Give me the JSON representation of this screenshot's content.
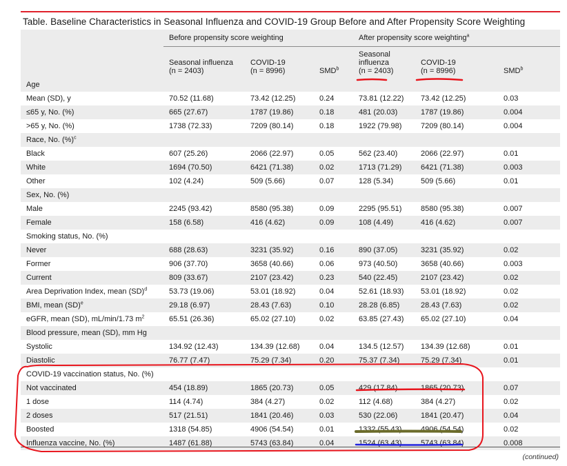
{
  "title": "Table. Baseline Characteristics in Seasonal Influenza and COVID-19 Group Before and After Propensity Score Weighting",
  "groups": {
    "before": "Before propensity score weighting",
    "after": "After propensity score weighting",
    "after_sup": "a"
  },
  "columns": {
    "before_flu": [
      "Seasonal influenza",
      "(n = 2403)"
    ],
    "before_covid": [
      "COVID-19",
      "(n = 8996)"
    ],
    "before_smd": "SMD",
    "after_flu": [
      "Seasonal",
      "influenza",
      "(n = 2403)"
    ],
    "after_covid": [
      "COVID-19",
      "(n = 8996)"
    ],
    "after_smd": "SMD",
    "smd_sup": "b"
  },
  "rows": [
    {
      "label": "Age",
      "type": "section",
      "cells": []
    },
    {
      "label": "Mean (SD), y",
      "type": "sub",
      "cells": [
        "70.52 (11.68)",
        "73.42 (12.25)",
        "0.24",
        "73.81 (12.22)",
        "73.42 (12.25)",
        "0.03"
      ]
    },
    {
      "label": "≤65 y, No. (%)",
      "type": "sub",
      "cells": [
        "665 (27.67)",
        "1787 (19.86)",
        "0.18",
        "481 (20.03)",
        "1787 (19.86)",
        "0.004"
      ]
    },
    {
      "label": ">65 y, No. (%)",
      "type": "sub",
      "cells": [
        "1738 (72.33)",
        "7209 (80.14)",
        "0.18",
        "1922 (79.98)",
        "7209 (80.14)",
        "0.004"
      ]
    },
    {
      "label": "Race, No. (%)",
      "sup": "c",
      "type": "section",
      "cells": []
    },
    {
      "label": "Black",
      "type": "sub",
      "cells": [
        "607 (25.26)",
        "2066 (22.97)",
        "0.05",
        "562 (23.40)",
        "2066 (22.97)",
        "0.01"
      ]
    },
    {
      "label": "White",
      "type": "sub",
      "cells": [
        "1694 (70.50)",
        "6421 (71.38)",
        "0.02",
        "1713 (71.29)",
        "6421 (71.38)",
        "0.003"
      ]
    },
    {
      "label": "Other",
      "type": "sub",
      "cells": [
        "102 (4.24)",
        "509 (5.66)",
        "0.07",
        "128 (5.34)",
        "509 (5.66)",
        "0.01"
      ]
    },
    {
      "label": "Sex, No. (%)",
      "type": "section",
      "cells": []
    },
    {
      "label": "Male",
      "type": "sub",
      "cells": [
        "2245 (93.42)",
        "8580 (95.38)",
        "0.09",
        "2295 (95.51)",
        "8580 (95.38)",
        "0.007"
      ]
    },
    {
      "label": "Female",
      "type": "sub",
      "cells": [
        "158 (6.58)",
        "416 (4.62)",
        "0.09",
        "108 (4.49)",
        "416 (4.62)",
        "0.007"
      ]
    },
    {
      "label": "Smoking status, No. (%)",
      "type": "section",
      "cells": []
    },
    {
      "label": "Never",
      "type": "sub",
      "cells": [
        "688 (28.63)",
        "3231 (35.92)",
        "0.16",
        "890 (37.05)",
        "3231 (35.92)",
        "0.02"
      ]
    },
    {
      "label": "Former",
      "type": "sub",
      "cells": [
        "906 (37.70)",
        "3658 (40.66)",
        "0.06",
        "973 (40.50)",
        "3658 (40.66)",
        "0.003"
      ]
    },
    {
      "label": "Current",
      "type": "sub",
      "cells": [
        "809 (33.67)",
        "2107 (23.42)",
        "0.23",
        "540 (22.45)",
        "2107 (23.42)",
        "0.02"
      ]
    },
    {
      "label": "Area Deprivation Index, mean (SD)",
      "sup": "d",
      "type": "main",
      "cells": [
        "53.73 (19.06)",
        "53.01 (18.92)",
        "0.04",
        "52.61 (18.93)",
        "53.01 (18.92)",
        "0.02"
      ]
    },
    {
      "label": "BMI, mean (SD)",
      "sup": "e",
      "type": "main",
      "cells": [
        "29.18 (6.97)",
        "28.43 (7.63)",
        "0.10",
        "28.28 (6.85)",
        "28.43 (7.63)",
        "0.02"
      ]
    },
    {
      "label": "eGFR, mean (SD), mL/min/1.73 m",
      "sup": "2",
      "type": "main",
      "cells": [
        "65.51 (26.36)",
        "65.02 (27.10)",
        "0.02",
        "63.85 (27.43)",
        "65.02 (27.10)",
        "0.04"
      ]
    },
    {
      "label": "Blood pressure, mean (SD), mm Hg",
      "type": "section",
      "cells": []
    },
    {
      "label": "Systolic",
      "type": "sub",
      "cells": [
        "134.92 (12.43)",
        "134.39 (12.68)",
        "0.04",
        "134.5 (12.57)",
        "134.39 (12.68)",
        "0.01"
      ]
    },
    {
      "label": "Diastolic",
      "type": "sub",
      "cells": [
        "76.77 (7.47)",
        "75.29 (7.34)",
        "0.20",
        "75.37 (7.34)",
        "75.29 (7.34)",
        "0.01"
      ]
    },
    {
      "label": "COVID-19 vaccination status, No. (%)",
      "type": "section",
      "cells": []
    },
    {
      "label": "Not vaccinated",
      "type": "sub",
      "cells": [
        "454 (18.89)",
        "1865 (20.73)",
        "0.05",
        "429 (17.84)",
        "1865 (20.73)",
        "0.07"
      ]
    },
    {
      "label": "1 dose",
      "type": "sub",
      "cells": [
        "114 (4.74)",
        "384 (4.27)",
        "0.02",
        "112 (4.68)",
        "384 (4.27)",
        "0.02"
      ]
    },
    {
      "label": "2 doses",
      "type": "sub",
      "cells": [
        "517 (21.51)",
        "1841 (20.46)",
        "0.03",
        "530 (22.06)",
        "1841 (20.47)",
        "0.04"
      ]
    },
    {
      "label": "Boosted",
      "type": "sub",
      "cells": [
        "1318 (54.85)",
        "4906 (54.54)",
        "0.01",
        "1332 (55.43)",
        "4906 (54.54)",
        "0.02"
      ]
    },
    {
      "label": "Influenza vaccine, No. (%)",
      "type": "main",
      "cells": [
        "1487 (61.88)",
        "5743 (63.84)",
        "0.04",
        "1524 (63.43)",
        "5743 (63.84)",
        "0.008"
      ]
    }
  ],
  "footer": "(continued)",
  "annotation_colors": {
    "red": "#e8141c",
    "olive": "#6b6b2a",
    "blue": "#2222dd"
  }
}
